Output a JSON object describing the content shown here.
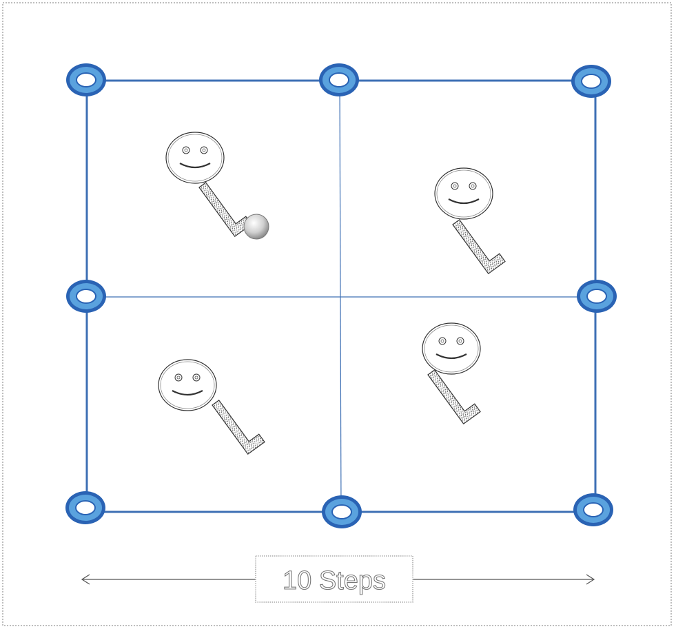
{
  "diagram": {
    "distance_label": "10 Steps",
    "colors": {
      "field_line": "#3d6fb4",
      "cone_outer": "#2a63b4",
      "cone_inner": "#5aa2de",
      "figure_stroke": "#333333",
      "ball": "#c6c6c6"
    },
    "cones_count": 8,
    "players_count": 4,
    "balls_count": 1
  }
}
